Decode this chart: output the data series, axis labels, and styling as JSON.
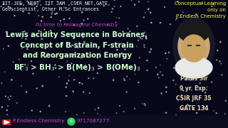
{
  "bg_color": "#08081a",
  "top_left_text": "IIT-JEE, NEET, IIT JAM ,CSIR NET,GATE,\nGeoscientist, Other M.Sc Entrances",
  "top_right_text": "Conceptual Learning\nonly on\nP.Endless Chemistry",
  "tagline": "Its time to reimagine Chemistry",
  "tagline_color": "#cc44cc",
  "main_line1": "Lewis acidity Sequence in Boranes,",
  "main_line2": "Concept of B-strain, F-strain",
  "main_line3": "and Reorganization Energy",
  "formula_color": "#ccffcc",
  "main_text_color": "#ccffcc",
  "bottom_channel": "P.Endless Chemistry",
  "bottom_phone": "9717087277",
  "bottom_text_color": "#cc44cc",
  "right_panel_text": "Paras Sir\n9 yr. Exp.\nCSIR JRF 35\nGATE 134",
  "right_panel_color": "#e8d8b0",
  "top_text_color": "#ffffff",
  "top_right_color": "#ffff44"
}
